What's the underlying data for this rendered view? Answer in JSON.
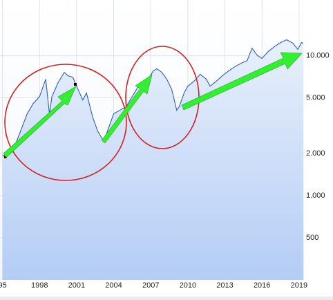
{
  "chart_data": {
    "type": "line",
    "log": true,
    "grid": true,
    "x": [
      1995.0,
      1995.2,
      1996,
      1997,
      1997.5,
      1998,
      1998.5,
      1998.8,
      1999,
      1999.5,
      2000,
      2000.3,
      2000.7,
      2001,
      2001.5,
      2001.8,
      2002.3,
      2002.7,
      2003.2,
      2003.6,
      2004,
      2004.5,
      2005,
      2005.5,
      2006,
      2006.4,
      2006.8,
      2007.2,
      2007.5,
      2007.9,
      2008.3,
      2008.7,
      2009.1,
      2009.3,
      2009.7,
      2010,
      2010.5,
      2011,
      2011.5,
      2011.8,
      2012.3,
      2012.8,
      2013.3,
      2013.8,
      2014.3,
      2014.8,
      2015.2,
      2015.6,
      2016,
      2016.5,
      2017,
      2017.5,
      2018,
      2018.5,
      2018.9,
      2019.2,
      2019.35
    ],
    "series": [
      {
        "color": "#2f5ea8",
        "values": [
          1950,
          1900,
          2260,
          3850,
          4570,
          5100,
          6800,
          3850,
          5100,
          6420,
          7600,
          7200,
          7000,
          6060,
          4830,
          5420,
          3640,
          2900,
          2440,
          3070,
          3850,
          4080,
          4320,
          5100,
          6060,
          5730,
          6800,
          7790,
          8060,
          7600,
          6800,
          5730,
          4080,
          4320,
          5420,
          6060,
          6570,
          7360,
          6800,
          6060,
          6570,
          7200,
          7790,
          8340,
          8820,
          9230,
          11300,
          10100,
          9560,
          10700,
          11600,
          12400,
          13000,
          12300,
          11100,
          12400,
          12300
        ]
      }
    ],
    "xlim": [
      1994.8,
      2019.4
    ],
    "xticks": [
      {
        "value": 1995,
        "label": "95"
      },
      1998,
      2001,
      2004,
      2007,
      2010,
      2013,
      2016,
      2019
    ],
    "ylim": [
      250,
      25000
    ],
    "yticks": [
      {
        "value": 10000,
        "label": "10.000"
      },
      {
        "value": 5000,
        "label": "5.000"
      },
      {
        "value": 2000,
        "label": "2.000"
      },
      {
        "value": 1000,
        "label": "1.000"
      },
      500
    ]
  }
}
